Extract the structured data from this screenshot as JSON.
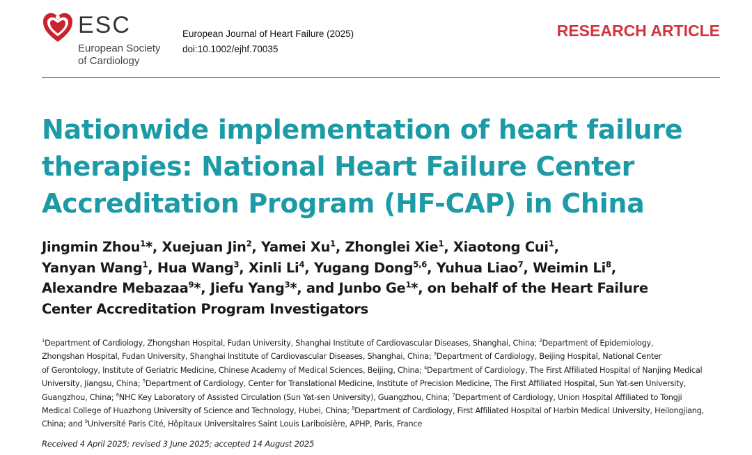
{
  "logo": {
    "acronym": "ESC",
    "society_line1": "European Society",
    "society_line2": "of Cardiology",
    "color": "#c8232e"
  },
  "journal": {
    "name": "European Journal of Heart Failure (2025)",
    "doi": "doi:10.1002/ejhf.70035"
  },
  "article_type": "RESEARCH ARTICLE",
  "title_lines": [
    "Nationwide implementation of heart failure",
    "therapies: National Heart Failure Center",
    "Accreditation Program (HF-CAP) in China"
  ],
  "author_lines": [
    [
      {
        "t": "Jingmin Zhou"
      },
      {
        "s": "1"
      },
      {
        "t": "*, Xuejuan Jin"
      },
      {
        "s": "2"
      },
      {
        "t": ", Yamei Xu"
      },
      {
        "s": "1"
      },
      {
        "t": ", Zhonglei Xie"
      },
      {
        "s": "1"
      },
      {
        "t": ", Xiaotong Cui"
      },
      {
        "s": "1"
      },
      {
        "t": ","
      }
    ],
    [
      {
        "t": "Yanyan Wang"
      },
      {
        "s": "1"
      },
      {
        "t": ", Hua Wang"
      },
      {
        "s": "3"
      },
      {
        "t": ", Xinli Li"
      },
      {
        "s": "4"
      },
      {
        "t": ", Yugang Dong"
      },
      {
        "s": "5,6"
      },
      {
        "t": ", Yuhua Liao"
      },
      {
        "s": "7"
      },
      {
        "t": ", Weimin Li"
      },
      {
        "s": "8"
      },
      {
        "t": ","
      }
    ],
    [
      {
        "t": "Alexandre Mebazaa"
      },
      {
        "s": "9"
      },
      {
        "t": "*, Jiefu Yang"
      },
      {
        "s": "3"
      },
      {
        "t": "*, and Junbo Ge"
      },
      {
        "s": "1"
      },
      {
        "t": "*,  on behalf of the Heart Failure"
      }
    ],
    [
      {
        "t": "Center Accreditation Program Investigators"
      }
    ]
  ],
  "affiliation_lines": [
    [
      {
        "s": "1"
      },
      {
        "t": "Department of Cardiology, Zhongshan Hospital, Fudan University, Shanghai Institute of Cardiovascular Diseases, Shanghai, China; "
      },
      {
        "s": "2"
      },
      {
        "t": "Department of Epidemiology,"
      }
    ],
    [
      {
        "t": "Zhongshan Hospital, Fudan University, Shanghai Institute of Cardiovascular Diseases, Shanghai, China; "
      },
      {
        "s": "3"
      },
      {
        "t": "Department of Cardiology, Beijing Hospital, National Center"
      }
    ],
    [
      {
        "t": "of Gerontology, Institute of Geriatric Medicine, Chinese Academy of Medical Sciences, Beijing, China; "
      },
      {
        "s": "4"
      },
      {
        "t": "Department of Cardiology, The First Affiliated Hospital of Nanjing Medical"
      }
    ],
    [
      {
        "t": "University, Jiangsu, China; "
      },
      {
        "s": "5"
      },
      {
        "t": "Department of Cardiology, Center for Translational Medicine, Institute of Precision Medicine, The First Affiliated Hospital, Sun Yat-sen University,"
      }
    ],
    [
      {
        "t": "Guangzhou, China; "
      },
      {
        "s": "6"
      },
      {
        "t": "NHC Key Laboratory of Assisted Circulation (Sun Yat-sen University), Guangzhou, China; "
      },
      {
        "s": "7"
      },
      {
        "t": "Department of Cardiology, Union Hospital Affiliated to Tongji"
      }
    ],
    [
      {
        "t": "Medical College of Huazhong University of Science and Technology, Hubei, China; "
      },
      {
        "s": "8"
      },
      {
        "t": "Department of Cardiology, First Affiliated Hospital of Harbin Medical University, Heilongjiang,"
      }
    ],
    [
      {
        "t": "China; and "
      },
      {
        "s": "9"
      },
      {
        "t": "Université Paris Cité, Hôpitaux Universitaires Saint Louis Lariboisière, APHP, Paris, France"
      }
    ]
  ],
  "dates": "Received 4 April 2025; revised 3 June 2025; accepted 14 August 2025",
  "colors": {
    "title": "#1c9ba7",
    "accent_red": "#d2333f"
  }
}
